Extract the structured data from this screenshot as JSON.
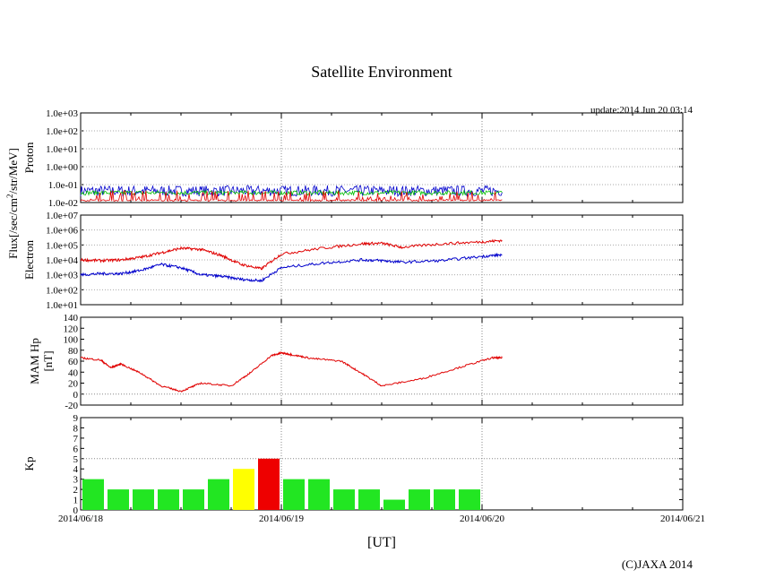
{
  "title": "Satellite Environment",
  "update": "update:2014 Jun 20 03:14",
  "copyright": "(C)JAXA 2014",
  "colors": {
    "red": "#e00000",
    "blue": "#0000cc",
    "green": "#00c000",
    "yellow": "#ffff00",
    "kp_green": "#22e622",
    "kp_red": "#ee0000"
  },
  "chart_data": [
    {
      "id": "proton",
      "type": "line",
      "ylabel": "Proton",
      "yscale": "log",
      "ylim": [
        0.01,
        1000
      ],
      "yticks": [
        "1.0e+03",
        "1.0e+02",
        "1.0e+01",
        "1.0e+00",
        "1.0e-01",
        "1.0e-02"
      ],
      "series": [
        {
          "name": "proton-high",
          "color": "blue",
          "noisy": true,
          "x": [
            0,
            2.1
          ],
          "y": [
            0.045,
            0.045
          ]
        },
        {
          "name": "proton-mid",
          "color": "green",
          "noisy": true,
          "x": [
            0,
            2.1
          ],
          "y": [
            0.035,
            0.035
          ]
        },
        {
          "name": "proton-low",
          "color": "red",
          "noisy": true,
          "x": [
            0,
            2.1
          ],
          "y": [
            0.012,
            0.012
          ]
        }
      ]
    },
    {
      "id": "electron",
      "type": "line",
      "ylabel": "Electron",
      "yscale": "log",
      "ylim": [
        10,
        10000000
      ],
      "yticks": [
        "1.0e+07",
        "1.0e+06",
        "1.0e+05",
        "1.0e+04",
        "1.0e+03",
        "1.0e+02",
        "1.0e+01"
      ],
      "series": [
        {
          "name": "electron-high",
          "color": "red",
          "x": [
            0,
            0.1,
            0.2,
            0.3,
            0.4,
            0.5,
            0.6,
            0.7,
            0.8,
            0.9,
            1.0,
            1.2,
            1.4,
            1.5,
            1.6,
            1.8,
            2.0,
            2.1
          ],
          "y": [
            10000,
            9000,
            10000,
            15000,
            30000,
            60000,
            50000,
            20000,
            5000,
            2500,
            25000,
            60000,
            120000,
            130000,
            70000,
            120000,
            160000,
            200000
          ]
        },
        {
          "name": "electron-low",
          "color": "blue",
          "x": [
            0,
            0.1,
            0.2,
            0.3,
            0.4,
            0.5,
            0.6,
            0.7,
            0.8,
            0.9,
            1.0,
            1.2,
            1.4,
            1.5,
            1.6,
            1.8,
            2.0,
            2.1
          ],
          "y": [
            1000,
            1200,
            1200,
            2000,
            5000,
            3000,
            1000,
            800,
            500,
            400,
            3000,
            6000,
            10000,
            9000,
            7000,
            9000,
            17000,
            22000
          ]
        }
      ]
    },
    {
      "id": "mam",
      "type": "line",
      "ylabel": "MAM Hp",
      "ylabel2": "[nT]",
      "ylim": [
        -20,
        140
      ],
      "yticks": [
        "140",
        "120",
        "100",
        "80",
        "60",
        "40",
        "20",
        "0",
        "-20"
      ],
      "series": [
        {
          "name": "hp",
          "color": "red",
          "x": [
            0,
            0.1,
            0.15,
            0.2,
            0.3,
            0.4,
            0.5,
            0.6,
            0.75,
            0.85,
            0.95,
            1.0,
            1.05,
            1.15,
            1.3,
            1.4,
            1.5,
            1.7,
            1.9,
            2.05,
            2.1
          ],
          "y": [
            66,
            62,
            48,
            55,
            38,
            15,
            5,
            20,
            15,
            40,
            70,
            75,
            72,
            65,
            60,
            38,
            15,
            28,
            50,
            66,
            66
          ]
        }
      ]
    },
    {
      "id": "kp",
      "type": "bar",
      "ylabel": "Kp",
      "ylim": [
        0,
        9
      ],
      "yticks": [
        "9",
        "8",
        "7",
        "6",
        "5",
        "4",
        "3",
        "2",
        "1",
        "0"
      ],
      "values": [
        3,
        2,
        2,
        2,
        2,
        3,
        4,
        5,
        3,
        3,
        2,
        2,
        1,
        2,
        2,
        2
      ],
      "bar_colors": [
        "kp_green",
        "kp_green",
        "kp_green",
        "kp_green",
        "kp_green",
        "kp_green",
        "yellow",
        "kp_red",
        "kp_green",
        "kp_green",
        "kp_green",
        "kp_green",
        "kp_green",
        "kp_green",
        "kp_green",
        "kp_green"
      ],
      "dashed_line": 5
    }
  ],
  "xaxis": {
    "label": "[UT]",
    "xlim": [
      0,
      3
    ],
    "ticks": [
      "2014/06/18",
      "2014/06/19",
      "2014/06/20",
      "2014/06/21"
    ]
  },
  "flux_label": "Flux[/sec/cm",
  "flux_sup": "2",
  "flux_label_tail": "/str/MeV]"
}
